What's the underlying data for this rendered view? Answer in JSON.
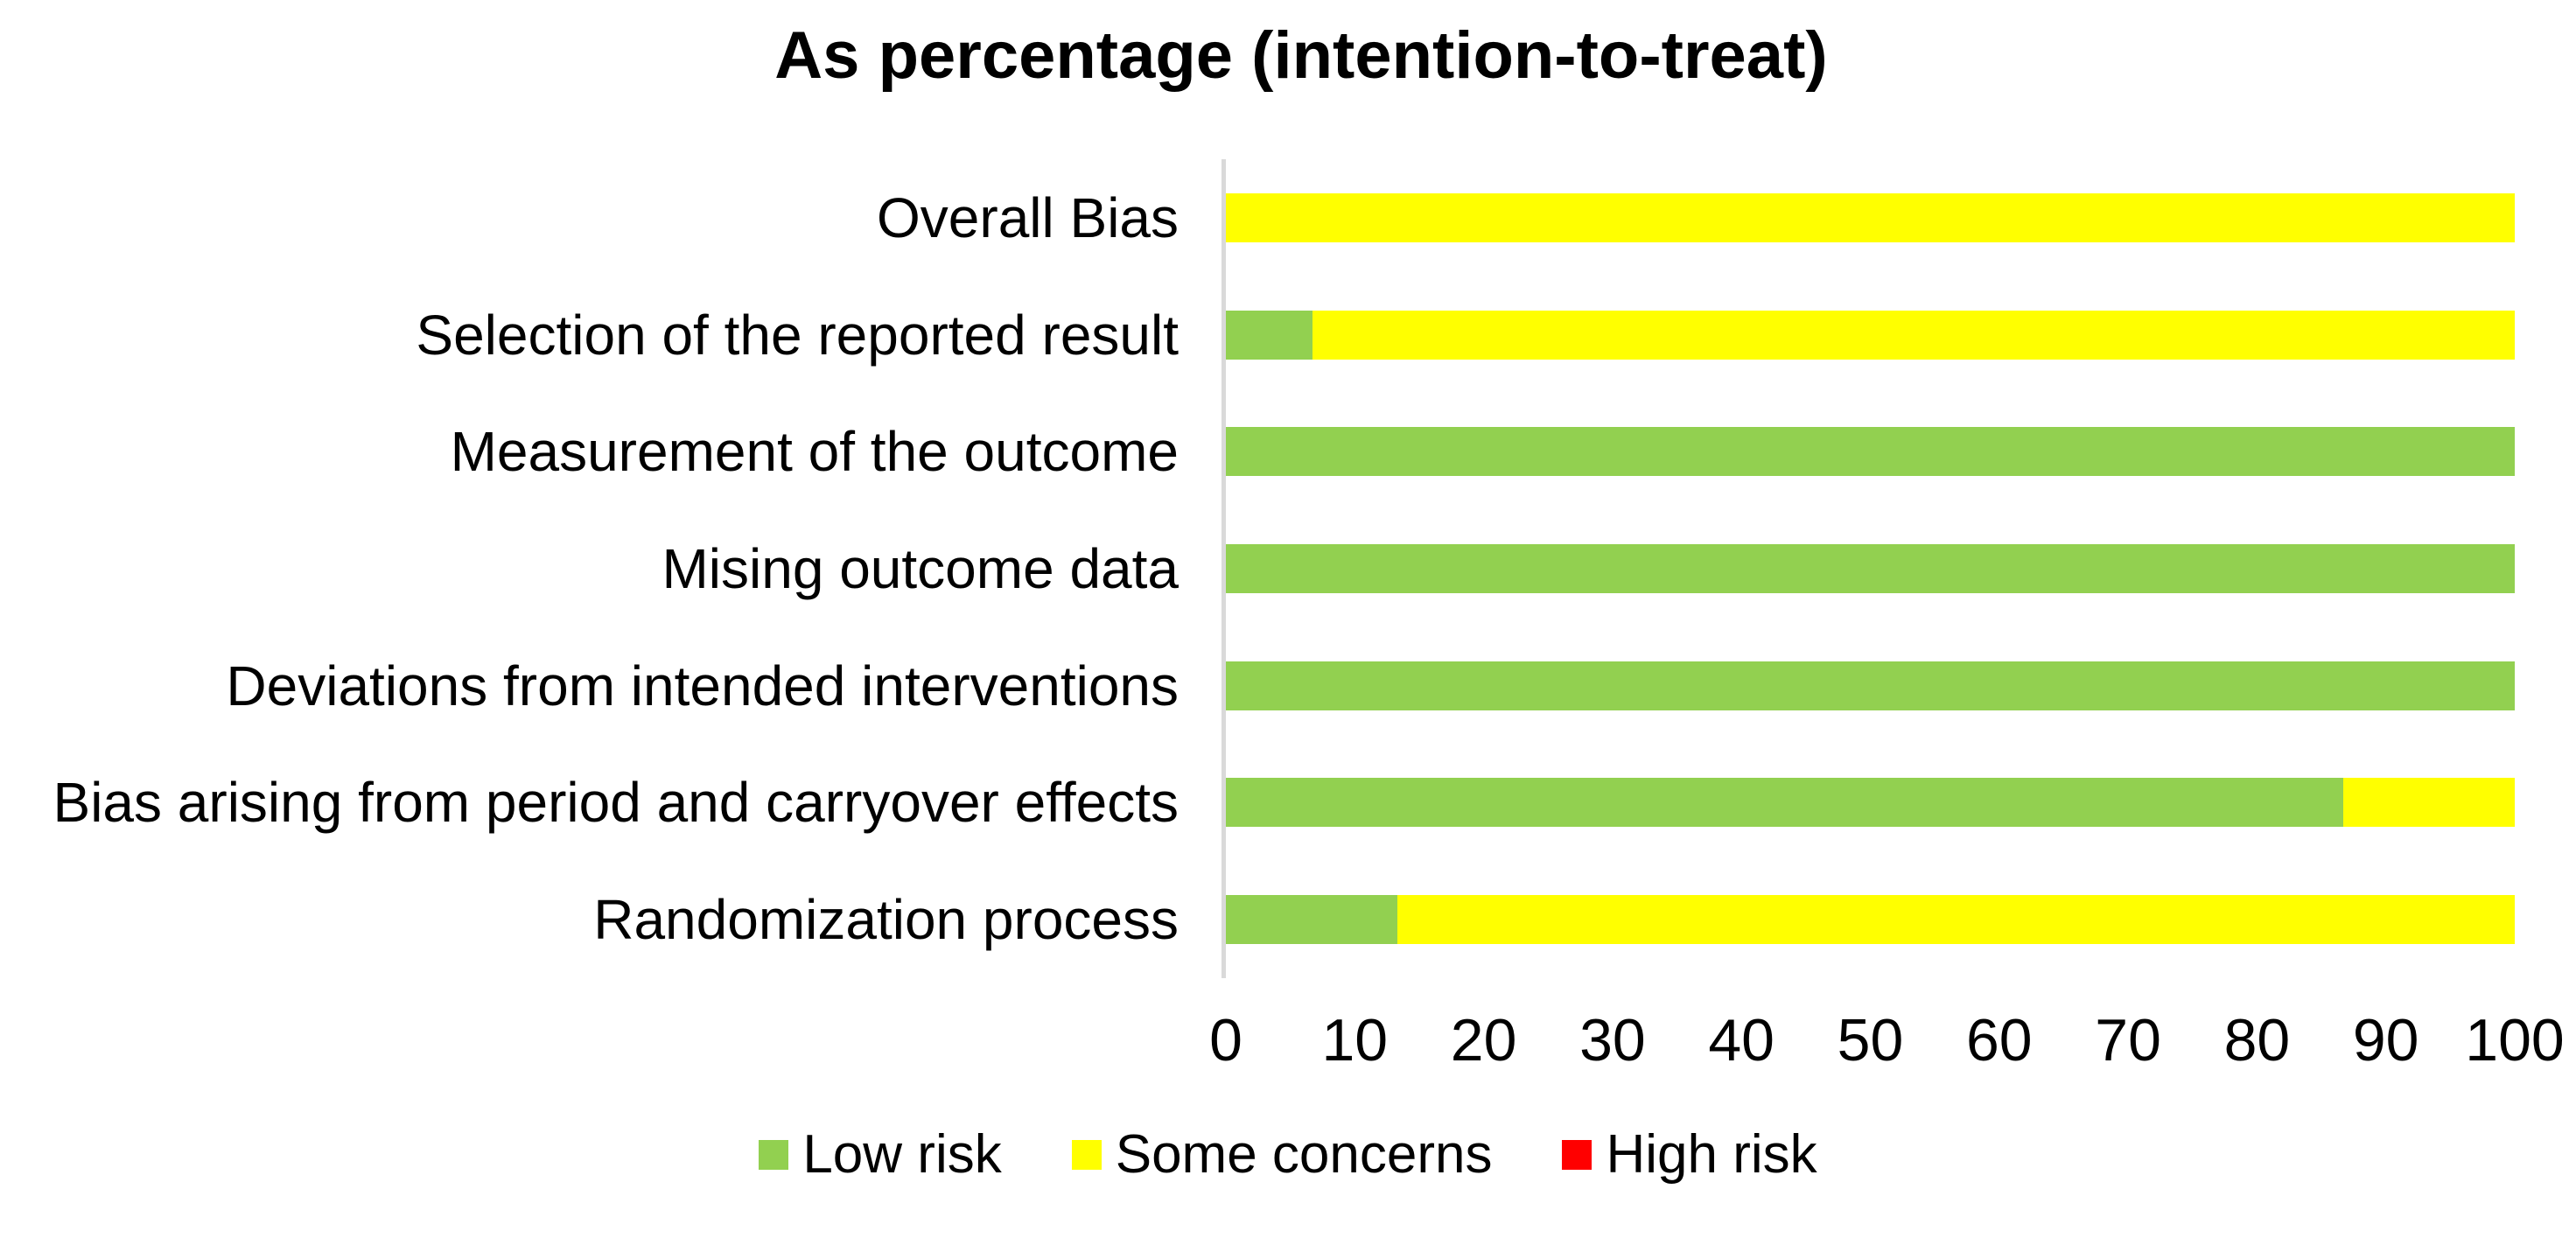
{
  "page": {
    "background": "#FFFFFF"
  },
  "chart_data": {
    "type": "bar",
    "orientation": "horizontal",
    "stacked": true,
    "title": "As percentage (intention-to-treat)",
    "categories": [
      "Overall Bias",
      "Selection of the reported result",
      "Measurement of the outcome",
      "Mising outcome data",
      "Deviations from intended interventions",
      "Bias arising from period and carryover effects",
      "Randomization process"
    ],
    "series": [
      {
        "name": "Low risk",
        "color": "#92D050",
        "values": [
          0,
          6.7,
          100,
          100,
          100,
          86.7,
          13.3
        ]
      },
      {
        "name": "Some concerns",
        "color": "#FFFF00",
        "values": [
          100,
          93.3,
          0,
          0,
          0,
          13.3,
          86.7
        ]
      },
      {
        "name": "High risk",
        "color": "#FF0000",
        "values": [
          0,
          0,
          0,
          0,
          0,
          0,
          0
        ]
      }
    ],
    "xlabel": "",
    "ylabel": "",
    "xlim": [
      0,
      100
    ],
    "xticks": [
      "0",
      "10",
      "20",
      "30",
      "40",
      "50",
      "60",
      "70",
      "80",
      "90",
      "100"
    ],
    "grid": false,
    "axis_color": "#D9D9D9",
    "legend_position": "bottom"
  },
  "legend": {
    "items": [
      {
        "label": "Low risk",
        "color": "#92D050"
      },
      {
        "label": "Some concerns",
        "color": "#FFFF00"
      },
      {
        "label": "High risk",
        "color": "#FF0000"
      }
    ]
  }
}
